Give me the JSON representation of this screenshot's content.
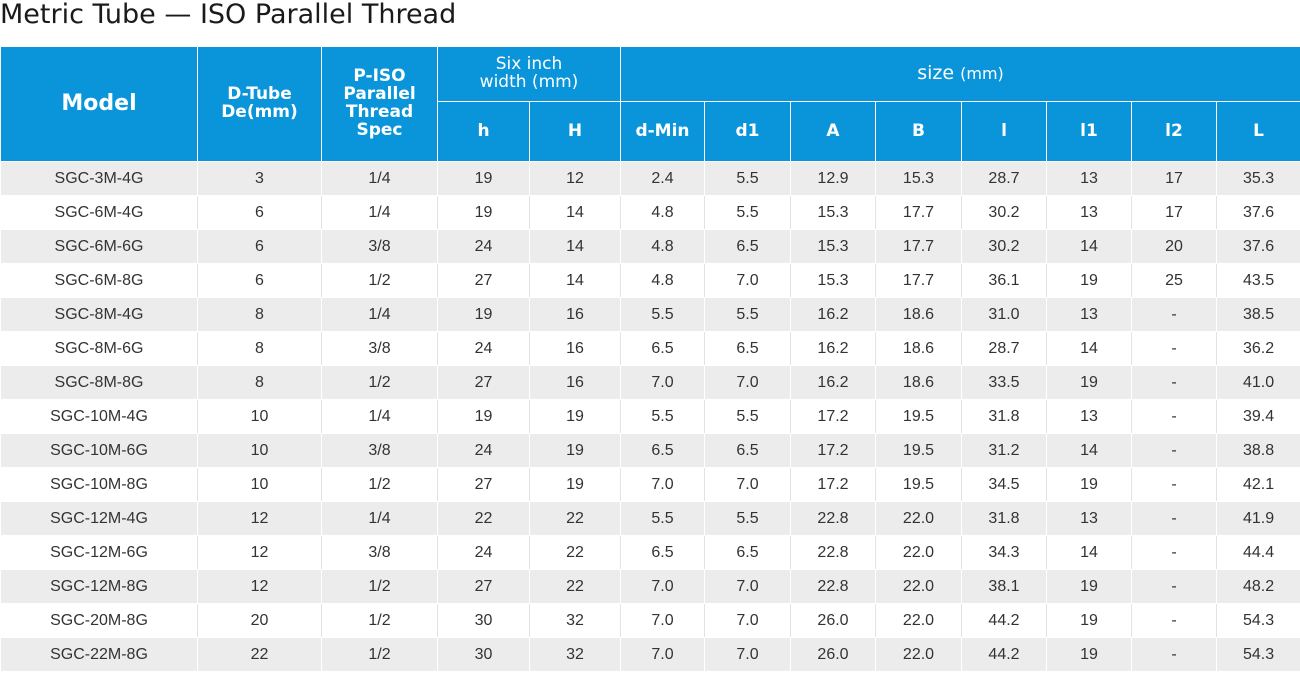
{
  "title": "Metric Tube — ISO Parallel Thread",
  "header": {
    "model": "Model",
    "dtube_line1": "D-Tube",
    "dtube_line2": "De(mm)",
    "piso_line1": "P-ISO",
    "piso_line2": "Parallel",
    "piso_line3": "Thread",
    "piso_line4": "Spec",
    "six_line1": "Six inch",
    "six_line2": "width (mm)",
    "size_label": "size",
    "size_unit": "(mm)",
    "sub": [
      "h",
      "H",
      "d-Min",
      "d1",
      "A",
      "B",
      "l",
      "l1",
      "l2",
      "L"
    ]
  },
  "rows": [
    [
      "SGC-3M-4G",
      "3",
      "1/4",
      "19",
      "12",
      "2.4",
      "5.5",
      "12.9",
      "15.3",
      "28.7",
      "13",
      "17",
      "35.3"
    ],
    [
      "SGC-6M-4G",
      "6",
      "1/4",
      "19",
      "14",
      "4.8",
      "5.5",
      "15.3",
      "17.7",
      "30.2",
      "13",
      "17",
      "37.6"
    ],
    [
      "SGC-6M-6G",
      "6",
      "3/8",
      "24",
      "14",
      "4.8",
      "6.5",
      "15.3",
      "17.7",
      "30.2",
      "14",
      "20",
      "37.6"
    ],
    [
      "SGC-6M-8G",
      "6",
      "1/2",
      "27",
      "14",
      "4.8",
      "7.0",
      "15.3",
      "17.7",
      "36.1",
      "19",
      "25",
      "43.5"
    ],
    [
      "SGC-8M-4G",
      "8",
      "1/4",
      "19",
      "16",
      "5.5",
      "5.5",
      "16.2",
      "18.6",
      "31.0",
      "13",
      "-",
      "38.5"
    ],
    [
      "SGC-8M-6G",
      "8",
      "3/8",
      "24",
      "16",
      "6.5",
      "6.5",
      "16.2",
      "18.6",
      "28.7",
      "14",
      "-",
      "36.2"
    ],
    [
      "SGC-8M-8G",
      "8",
      "1/2",
      "27",
      "16",
      "7.0",
      "7.0",
      "16.2",
      "18.6",
      "33.5",
      "19",
      "-",
      "41.0"
    ],
    [
      "SGC-10M-4G",
      "10",
      "1/4",
      "19",
      "19",
      "5.5",
      "5.5",
      "17.2",
      "19.5",
      "31.8",
      "13",
      "-",
      "39.4"
    ],
    [
      "SGC-10M-6G",
      "10",
      "3/8",
      "24",
      "19",
      "6.5",
      "6.5",
      "17.2",
      "19.5",
      "31.2",
      "14",
      "-",
      "38.8"
    ],
    [
      "SGC-10M-8G",
      "10",
      "1/2",
      "27",
      "19",
      "7.0",
      "7.0",
      "17.2",
      "19.5",
      "34.5",
      "19",
      "-",
      "42.1"
    ],
    [
      "SGC-12M-4G",
      "12",
      "1/4",
      "22",
      "22",
      "5.5",
      "5.5",
      "22.8",
      "22.0",
      "31.8",
      "13",
      "-",
      "41.9"
    ],
    [
      "SGC-12M-6G",
      "12",
      "3/8",
      "24",
      "22",
      "6.5",
      "6.5",
      "22.8",
      "22.0",
      "34.3",
      "14",
      "-",
      "44.4"
    ],
    [
      "SGC-12M-8G",
      "12",
      "1/2",
      "27",
      "22",
      "7.0",
      "7.0",
      "22.8",
      "22.0",
      "38.1",
      "19",
      "-",
      "48.2"
    ],
    [
      "SGC-20M-8G",
      "20",
      "1/2",
      "30",
      "32",
      "7.0",
      "7.0",
      "26.0",
      "22.0",
      "44.2",
      "19",
      "-",
      "54.3"
    ],
    [
      "SGC-22M-8G",
      "22",
      "1/2",
      "30",
      "32",
      "7.0",
      "7.0",
      "26.0",
      "22.0",
      "44.2",
      "19",
      "-",
      "54.3"
    ]
  ],
  "colors": {
    "header_bg": "#0a95db",
    "row_stripe": "#ececec"
  }
}
